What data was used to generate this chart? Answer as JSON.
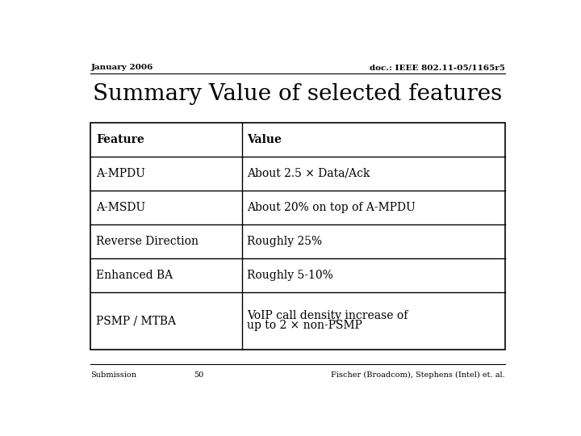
{
  "header_left": "January 2006",
  "header_right": "doc.: IEEE 802.11-05/1165r5",
  "title": "Summary Value of selected features",
  "col_headers": [
    "Feature",
    "Value"
  ],
  "rows": [
    [
      "A-MPDU",
      "About 2.5 × Data/Ack"
    ],
    [
      "A-MSDU",
      "About 20% on top of A-MPDU"
    ],
    [
      "Reverse Direction",
      "Roughly 25%"
    ],
    [
      "Enhanced BA",
      "Roughly 5-10%"
    ],
    [
      "PSMP / MTBA",
      "VoIP call density increase of\nup to 2 × non-PSMP"
    ]
  ],
  "footer_left": "Submission",
  "footer_center": "50",
  "footer_right": "Fischer (Broadcom), Stephens (Intel) et. al.",
  "bg_color": "#ffffff",
  "text_color": "#000000",
  "table_line_color": "#000000",
  "header_fontsize": 7.5,
  "title_fontsize": 20,
  "col_header_fontsize": 10,
  "cell_fontsize": 10,
  "footer_fontsize": 7,
  "col_split": 0.365
}
